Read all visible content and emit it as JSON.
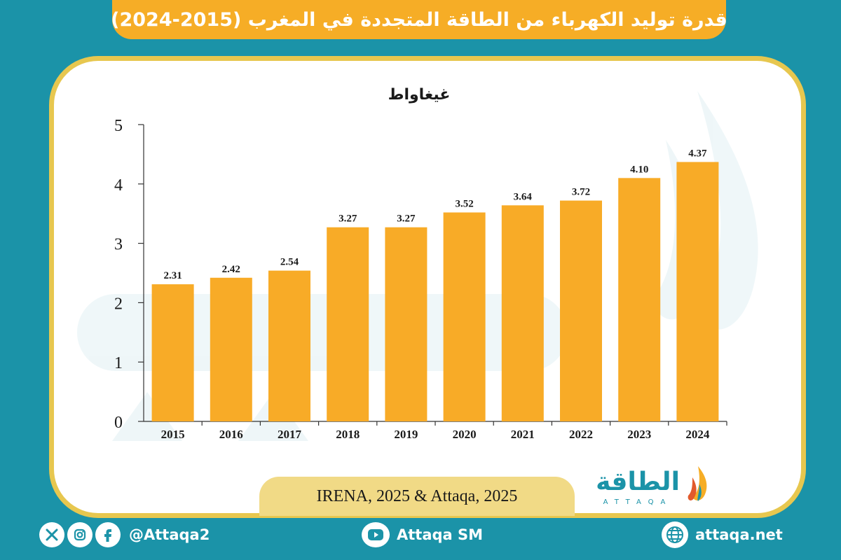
{
  "header": {
    "title": "قدرة توليد الكهرباء من الطاقة المتجددة في المغرب (2015-2024)"
  },
  "chart_data": {
    "type": "bar",
    "title": "قدرة توليد الكهرباء من الطاقة المتجددة في المغرب (2015-2024)",
    "ylabel": "غيغاواط",
    "xlabel": "",
    "categories": [
      "2015",
      "2016",
      "2017",
      "2018",
      "2019",
      "2020",
      "2021",
      "2022",
      "2023",
      "2024"
    ],
    "values": [
      2.31,
      2.42,
      2.54,
      3.27,
      3.27,
      3.52,
      3.64,
      3.72,
      4.1,
      4.37
    ],
    "value_labels": [
      "2.31",
      "2.42",
      "2.54",
      "3.27",
      "3.27",
      "3.52",
      "3.64",
      "3.72",
      "4.10",
      "4.37"
    ],
    "ylim": [
      0,
      5
    ],
    "yticks": [
      "0",
      "1",
      "2",
      "3",
      "4",
      "5"
    ],
    "bar_color": "#f8ab27",
    "grid": false,
    "legend": false
  },
  "source": {
    "text": "IRENA, 2025 & Attaqa, 2025"
  },
  "logo": {
    "arabic": "الطاقة",
    "latin": "ATTAQA"
  },
  "footer": {
    "social_handle": "@Attaqa2",
    "social_icons": [
      "x-icon",
      "instagram-icon",
      "facebook-icon"
    ],
    "youtube_label": "Attaqa SM",
    "website": "attaqa.net"
  },
  "colors": {
    "background": "#1b93a8",
    "accent": "#f6ad26",
    "panel_border": "#e7c74f",
    "source_pill": "#f1da86",
    "logo_text": "#1b93a8"
  }
}
